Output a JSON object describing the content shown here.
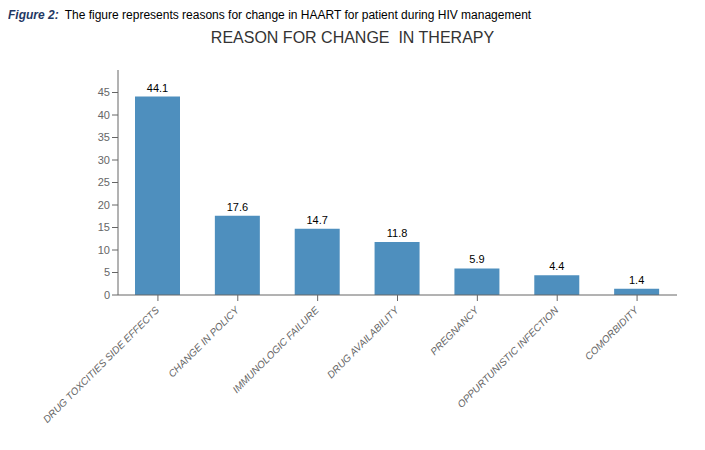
{
  "chart_data": {
    "type": "bar",
    "title": "REASON FOR CHANGE  IN THERAPY",
    "annotations": [
      "Figure 2:",
      "The figure represents reasons for change in HAART for patient during HIV management"
    ],
    "categories": [
      "DRUG TOXCITIES SIDE EFFECTS",
      "CHANGE IN POLICY",
      "IMMUNOLOGIC FAILURE",
      "DRUG AVAILABILITY",
      "PREGNANCY",
      "OPPURTUNISTIC INFECTION",
      "COMORBIDITY"
    ],
    "values": [
      44.1,
      17.6,
      14.7,
      11.8,
      5.9,
      4.4,
      1.4
    ],
    "color": "#4E8FBE",
    "ylim": [
      0,
      50
    ],
    "yticks": [
      0,
      5,
      10,
      15,
      20,
      25,
      30,
      35,
      40,
      45
    ],
    "grid": false,
    "data_labels": true
  }
}
